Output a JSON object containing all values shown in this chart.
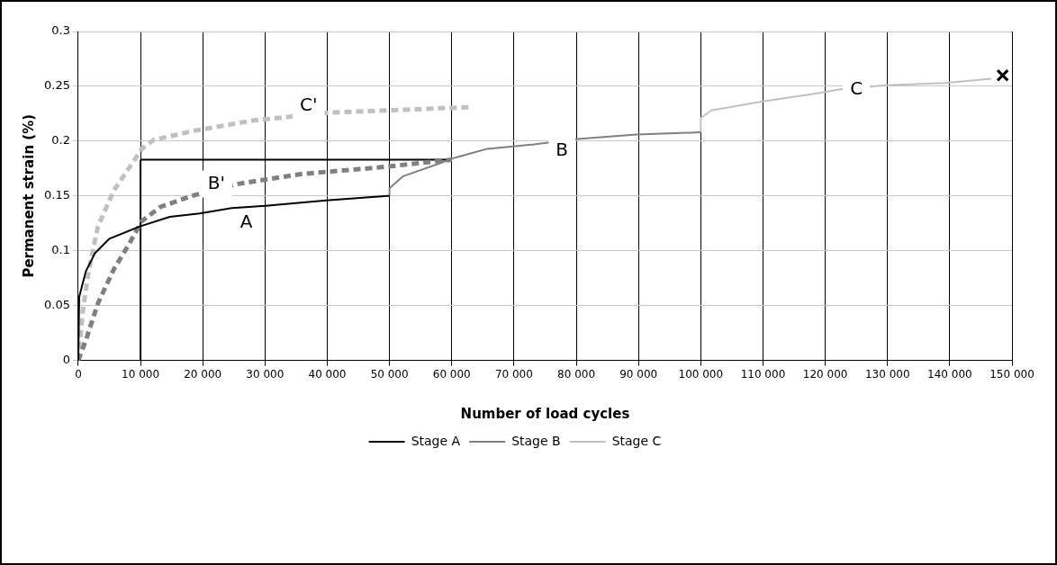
{
  "chart_data": {
    "type": "line",
    "xlabel": "Number of load cycles",
    "ylabel": "Permanent strain (%)",
    "xlim": [
      0,
      150000
    ],
    "xticks": [
      0,
      {
        "value": 10000,
        "label": "10 000"
      },
      {
        "value": 20000,
        "label": "20 000"
      },
      {
        "value": 30000,
        "label": "30 000"
      },
      {
        "value": 40000,
        "label": "40 000"
      },
      {
        "value": 50000,
        "label": "50 000"
      },
      {
        "value": 60000,
        "label": "60 000"
      },
      {
        "value": 70000,
        "label": "70 000"
      },
      {
        "value": 80000,
        "label": "80 000"
      },
      {
        "value": 90000,
        "label": "90 000"
      },
      {
        "value": 100000,
        "label": "100 000"
      },
      {
        "value": 110000,
        "label": "110 000"
      },
      {
        "value": 120000,
        "label": "120 000"
      },
      {
        "value": 130000,
        "label": "130 000"
      },
      {
        "value": 140000,
        "label": "140 000"
      },
      {
        "value": 150000,
        "label": "150 000"
      }
    ],
    "ylim": [
      0,
      0.3
    ],
    "yticks": [
      0,
      0.05,
      0.1,
      0.15,
      0.2,
      0.25,
      0.3
    ],
    "grid": true,
    "legend": "bottom",
    "marker": "none",
    "series": [
      {
        "name": "Stage A",
        "color": "#000000",
        "line_style": "solid",
        "x": [
          0,
          150,
          1200,
          2700,
          5000,
          9800,
          14700,
          19500,
          24700,
          30100,
          39800,
          49700,
          50000
        ],
        "values": [
          0,
          0.058,
          0.081,
          0.098,
          0.111,
          0.122,
          0.131,
          0.134,
          0.139,
          0.141,
          0.146,
          0.15,
          0.15
        ]
      },
      {
        "name": "Stage B",
        "color": "#808080",
        "line_style": "solid",
        "x": [
          50000,
          50000,
          52200,
          58200,
          60000,
          65700,
          73200,
          80200,
          89700,
          100000
        ],
        "values": [
          0.15,
          0.157,
          0.168,
          0.18,
          0.184,
          0.193,
          0.197,
          0.202,
          0.206,
          0.208
        ]
      },
      {
        "name": "Stage C",
        "color": "#c0c0c0",
        "line_style": "solid",
        "x": [
          100000,
          100000,
          101700,
          109700,
          119200,
          122200,
          129700,
          139200,
          146700
        ],
        "values": [
          0.208,
          0.221,
          0.228,
          0.236,
          0.244,
          0.247,
          0.251,
          0.253,
          0.257
        ]
      },
      {
        "color": "#808080",
        "line_style": "dashed",
        "x": [
          0,
          1200,
          3150,
          5700,
          8250,
          10200,
          13200,
          18200,
          25700,
          35800,
          48300,
          58200,
          60000
        ],
        "values": [
          0,
          0.018,
          0.052,
          0.083,
          0.107,
          0.127,
          0.14,
          0.15,
          0.161,
          0.17,
          0.176,
          0.182,
          0.183
        ]
      },
      {
        "color": "#c0c0c0",
        "line_style": "dashed",
        "x": [
          0,
          750,
          1650,
          3150,
          5700,
          8700,
          10200,
          12100,
          18200,
          28200,
          40600,
          58200,
          63000
        ],
        "values": [
          0,
          0.046,
          0.081,
          0.122,
          0.155,
          0.18,
          0.193,
          0.201,
          0.209,
          0.219,
          0.226,
          0.23,
          0.231
        ]
      },
      {
        "color": "#000000",
        "line_style": "solid",
        "x": [
          10000,
          10000
        ],
        "values": [
          0,
          0.183
        ]
      },
      {
        "color": "#000000",
        "line_style": "solid",
        "x": [
          60000,
          10000
        ],
        "values": [
          0.183,
          0.183
        ]
      },
      {
        "type": "scatter",
        "color": "#000000",
        "marker": "cross",
        "x": [
          148500
        ],
        "values": [
          0.26
        ]
      }
    ],
    "annotations": [
      {
        "text": "A",
        "x": 27000,
        "y": 0.125
      },
      {
        "text": "B'",
        "x": 22200,
        "y": 0.161
      },
      {
        "text": "C'",
        "x": 37000,
        "y": 0.232
      },
      {
        "text": "B",
        "x": 77700,
        "y": 0.191
      },
      {
        "text": "C",
        "x": 125000,
        "y": 0.247
      }
    ]
  }
}
